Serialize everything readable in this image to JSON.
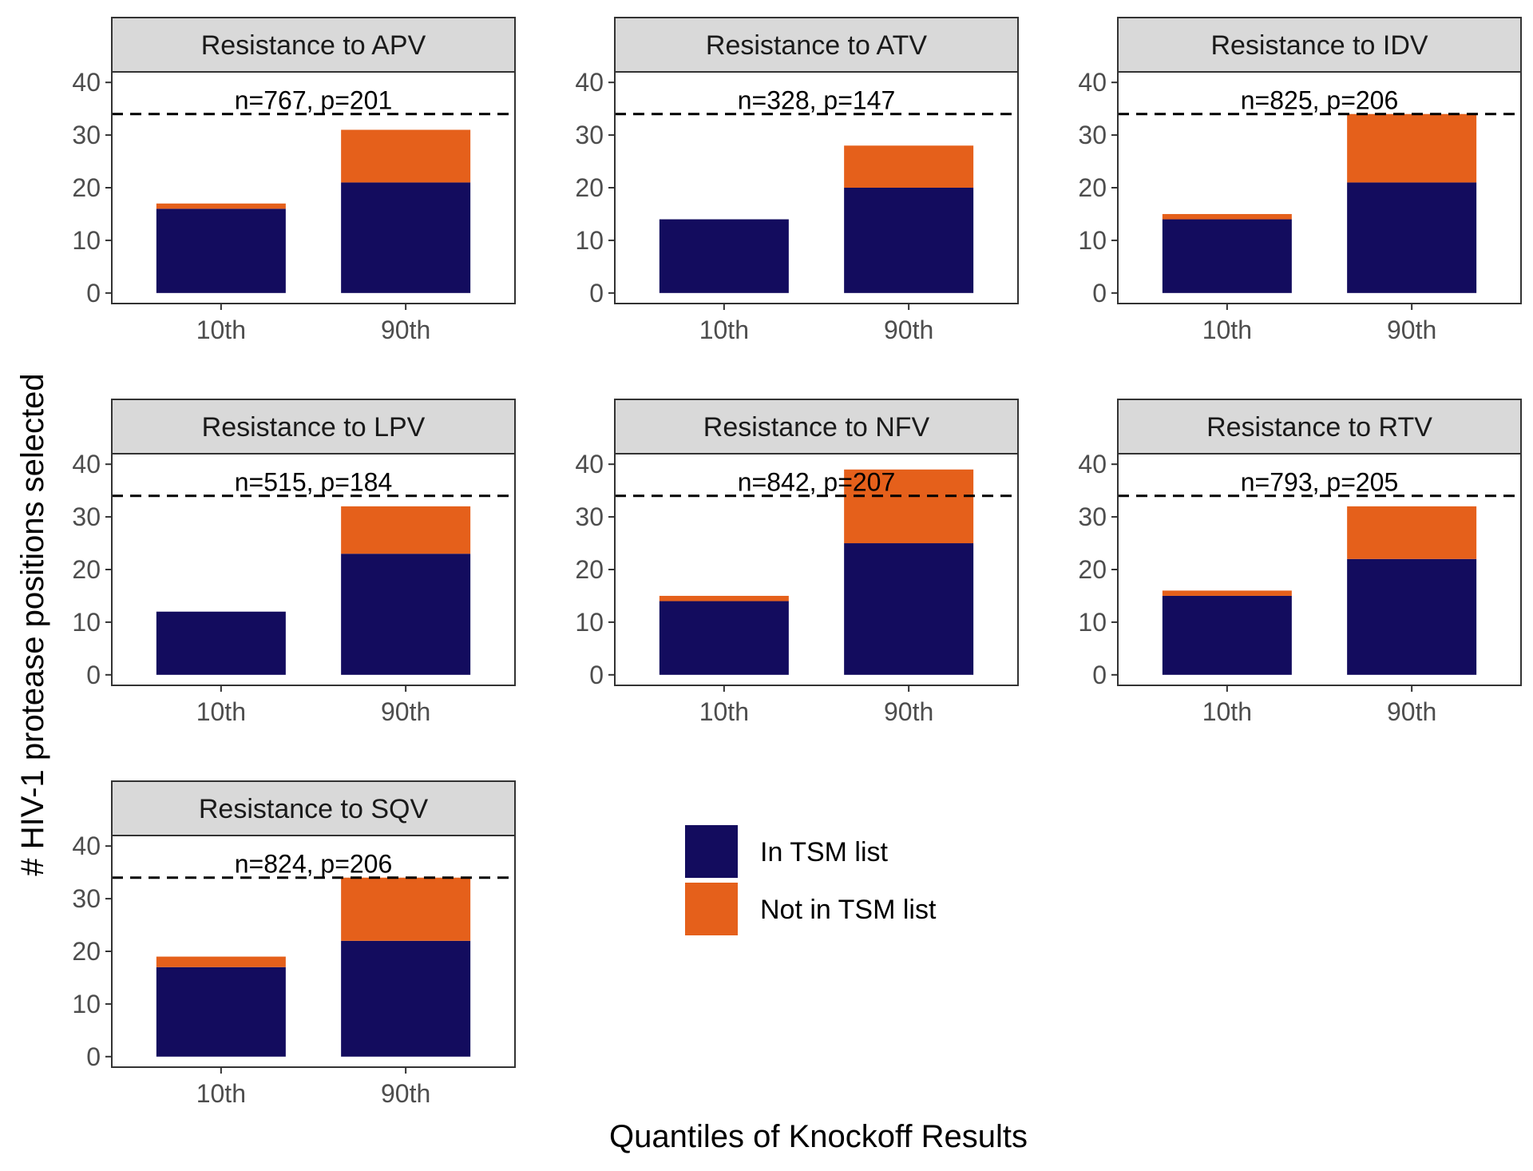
{
  "chart_data": {
    "type": "bar",
    "stacked": true,
    "xlabel": "Quantiles of Knockoff Results",
    "ylabel": "# HIV-1 protease positions selected",
    "categories": [
      "10th",
      "90th"
    ],
    "yticks": [
      0,
      10,
      20,
      30,
      40
    ],
    "ylim": [
      -2,
      42
    ],
    "reference_line": 34,
    "legend": {
      "placement": "bottom-center",
      "entries": [
        {
          "name": "In TSM list",
          "color": "#130c5e"
        },
        {
          "name": "Not in TSM list",
          "color": "#e5601b"
        }
      ]
    },
    "panels": [
      {
        "title": "Resistance to APV",
        "annotation": "n=767, p=201",
        "in_tsm": [
          16,
          21
        ],
        "not_in_tsm": [
          1,
          10
        ]
      },
      {
        "title": "Resistance to ATV",
        "annotation": "n=328, p=147",
        "in_tsm": [
          14,
          20
        ],
        "not_in_tsm": [
          0,
          8
        ]
      },
      {
        "title": "Resistance to IDV",
        "annotation": "n=825, p=206",
        "in_tsm": [
          14,
          21
        ],
        "not_in_tsm": [
          1,
          13
        ]
      },
      {
        "title": "Resistance to LPV",
        "annotation": "n=515, p=184",
        "in_tsm": [
          12,
          23
        ],
        "not_in_tsm": [
          0,
          9
        ]
      },
      {
        "title": "Resistance to NFV",
        "annotation": "n=842, p=207",
        "in_tsm": [
          14,
          25
        ],
        "not_in_tsm": [
          1,
          14
        ]
      },
      {
        "title": "Resistance to RTV",
        "annotation": "n=793, p=205",
        "in_tsm": [
          15,
          22
        ],
        "not_in_tsm": [
          1,
          10
        ]
      },
      {
        "title": "Resistance to SQV",
        "annotation": "n=824, p=206",
        "in_tsm": [
          17,
          22
        ],
        "not_in_tsm": [
          2,
          12
        ]
      }
    ]
  }
}
